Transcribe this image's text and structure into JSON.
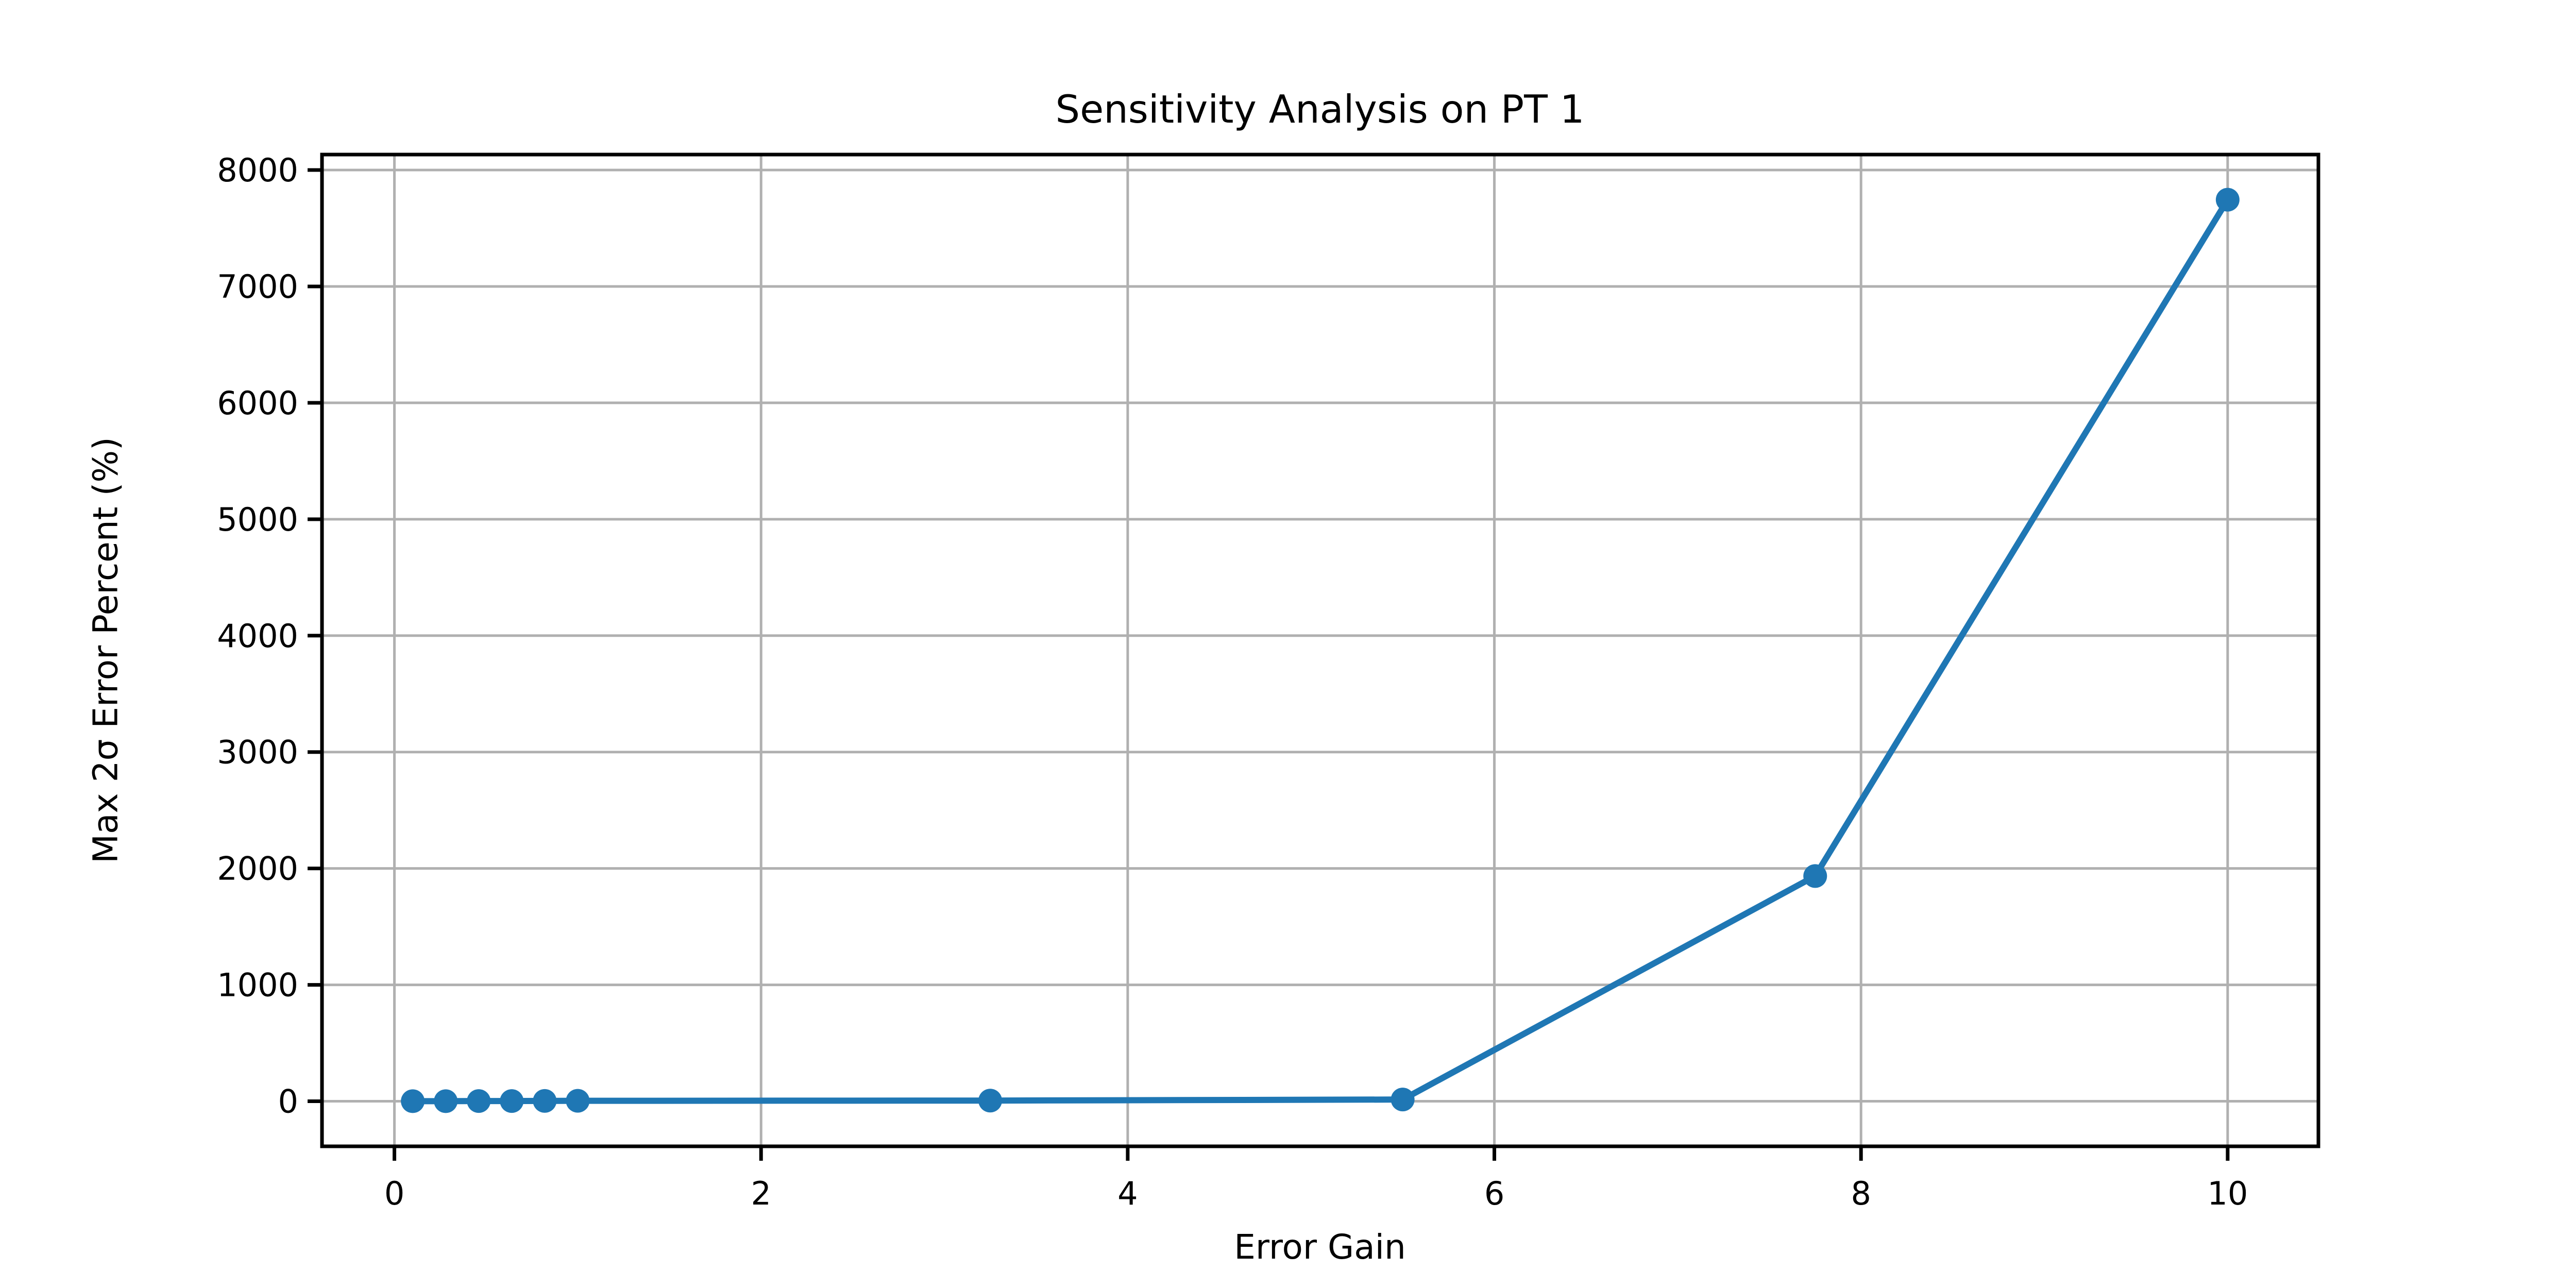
{
  "chart_data": {
    "type": "line",
    "title": "Sensitivity Analysis on PT 1",
    "xlabel": "Error Gain",
    "ylabel": "Max 2σ Error Percent (%)",
    "x": [
      0.1,
      0.28,
      0.46,
      0.64,
      0.82,
      1.0,
      3.25,
      5.5,
      7.75,
      10.0
    ],
    "y": [
      1,
      1,
      2,
      2,
      3,
      4,
      6,
      15,
      1935,
      7745
    ],
    "xticks": [
      0,
      2,
      4,
      6,
      8,
      10
    ],
    "yticks": [
      0,
      1000,
      2000,
      3000,
      4000,
      5000,
      6000,
      7000,
      8000
    ],
    "xlim": [
      -0.395,
      10.495
    ],
    "ylim": [
      -387,
      8133
    ],
    "grid": true,
    "legend": "none",
    "line_color": "#1f77b4",
    "grid_color": "#b0b0b0",
    "spine_color": "#000000",
    "marker": "o"
  }
}
